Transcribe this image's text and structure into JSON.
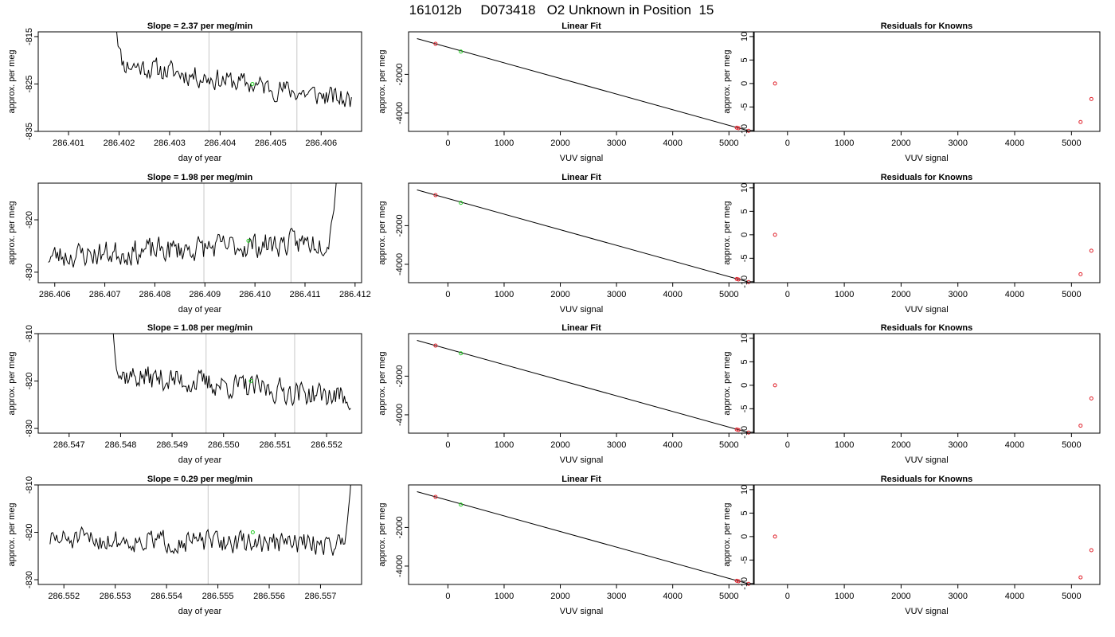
{
  "figure": {
    "title": "161012b     D073418   O2 Unknown in Position  15"
  },
  "colors": {
    "trace": "#000000",
    "vline": "#c8c8c8",
    "known_point": "#e0202a",
    "unknown_point": "#22cc22",
    "axis": "#000000"
  },
  "chart_data": [
    {
      "row": 1,
      "panels": [
        {
          "type": "line",
          "title": "Slope =  2.37  per meg/min",
          "xlabel": "day of year",
          "ylabel": "approx. per meg",
          "xlim": [
            286.4004,
            286.4068
          ],
          "ylim": [
            -835,
            -814
          ],
          "xticks": [
            286.401,
            286.402,
            286.403,
            286.404,
            286.405,
            286.406
          ],
          "xtick_labels": [
            "286.401",
            "286.402",
            "286.403",
            "286.404",
            "286.405",
            "286.406"
          ],
          "yticks": [
            -815,
            -825,
            -835
          ],
          "ytick_labels": [
            "-815",
            "-825",
            "-835"
          ],
          "vlines": [
            286.40378,
            286.40552
          ],
          "trace": {
            "x_start": 286.4019,
            "x_end": 286.4066,
            "baseline_start": -820.5,
            "baseline_end": -828.5,
            "amplitude": 2.3,
            "spike_start": -808,
            "seed": 11,
            "n": 180
          },
          "unknown_point": {
            "x": 286.40464,
            "y": -825
          }
        },
        {
          "type": "scatter",
          "title": "Linear Fit",
          "xlabel": "VUV signal",
          "ylabel": "approx. per meg",
          "xlim": [
            -700,
            5450
          ],
          "ylim": [
            -4950,
            200
          ],
          "xticks": [
            0,
            1000,
            2000,
            3000,
            4000,
            5000
          ],
          "xtick_labels": [
            "0",
            "1000",
            "2000",
            "3000",
            "4000",
            "5000"
          ],
          "yticks": [
            -2000,
            -4000
          ],
          "ytick_labels": [
            "-2000",
            "-4000"
          ],
          "fit_line": {
            "x": [
              -550,
              5350
            ],
            "y": [
              -150,
              -4920
            ]
          },
          "known_points": [
            {
              "x": -220,
              "y": -420
            },
            {
              "x": 5140,
              "y": -4760
            },
            {
              "x": 5170,
              "y": -4785
            },
            {
              "x": 5350,
              "y": -4920
            }
          ],
          "unknown_point": {
            "x": 230,
            "y": -820
          }
        },
        {
          "type": "scatter",
          "title": "Residuals for Knowns",
          "xlabel": "VUV signal",
          "ylabel": "approx. per meg",
          "xlim": [
            -600,
            5500
          ],
          "ylim": [
            -10.2,
            11
          ],
          "xticks": [
            0,
            1000,
            2000,
            3000,
            4000,
            5000
          ],
          "xtick_labels": [
            "0",
            "1000",
            "2000",
            "3000",
            "4000",
            "5000"
          ],
          "yticks": [
            10,
            5,
            0,
            -5,
            -10
          ],
          "ytick_labels": [
            "10",
            "5",
            "0",
            "-5",
            "-10"
          ],
          "known_points": [
            {
              "x": -220,
              "y": 0
            },
            {
              "x": 5160,
              "y": -8.2
            },
            {
              "x": 5350,
              "y": -3.3
            }
          ]
        }
      ]
    },
    {
      "row": 2,
      "panels": [
        {
          "type": "line",
          "title": "Slope =  1.98  per meg/min",
          "xlabel": "day of year",
          "ylabel": "approx. per meg",
          "xlim": [
            286.40567,
            286.41213
          ],
          "ylim": [
            -832,
            -813
          ],
          "xticks": [
            286.406,
            286.407,
            286.408,
            286.409,
            286.41,
            286.411,
            286.412
          ],
          "xtick_labels": [
            "286.406",
            "286.407",
            "286.408",
            "286.409",
            "286.410",
            "286.411",
            "286.412"
          ],
          "yticks": [
            -820,
            -830
          ],
          "ytick_labels": [
            "-820",
            "-830"
          ],
          "vlines": [
            286.40898,
            286.41072
          ],
          "trace": {
            "x_start": 286.40587,
            "x_end": 286.41163,
            "baseline_start": -827,
            "baseline_end": -824,
            "amplitude": 2.4,
            "spike_end": -812,
            "seed": 23,
            "n": 220
          },
          "unknown_point": {
            "x": 286.40987,
            "y": -824
          }
        },
        {
          "type": "scatter",
          "title": "Linear Fit",
          "xlabel": "VUV signal",
          "ylabel": "approx. per meg",
          "xlim": [
            -700,
            5450
          ],
          "ylim": [
            -4950,
            200
          ],
          "xticks": [
            0,
            1000,
            2000,
            3000,
            4000,
            5000
          ],
          "xtick_labels": [
            "0",
            "1000",
            "2000",
            "3000",
            "4000",
            "5000"
          ],
          "yticks": [
            -2000,
            -4000
          ],
          "ytick_labels": [
            "-2000",
            "-4000"
          ],
          "fit_line": {
            "x": [
              -550,
              5350
            ],
            "y": [
              -150,
              -4920
            ]
          },
          "known_points": [
            {
              "x": -220,
              "y": -420
            },
            {
              "x": 5140,
              "y": -4760
            },
            {
              "x": 5170,
              "y": -4785
            },
            {
              "x": 5350,
              "y": -4920
            }
          ],
          "unknown_point": {
            "x": 230,
            "y": -820
          }
        },
        {
          "type": "scatter",
          "title": "Residuals for Knowns",
          "xlabel": "VUV signal",
          "ylabel": "approx. per meg",
          "xlim": [
            -600,
            5500
          ],
          "ylim": [
            -10.2,
            11
          ],
          "xticks": [
            0,
            1000,
            2000,
            3000,
            4000,
            5000
          ],
          "xtick_labels": [
            "0",
            "1000",
            "2000",
            "3000",
            "4000",
            "5000"
          ],
          "yticks": [
            10,
            5,
            0,
            -5,
            -10
          ],
          "ytick_labels": [
            "10",
            "5",
            "0",
            "-5",
            "-10"
          ],
          "known_points": [
            {
              "x": -220,
              "y": 0
            },
            {
              "x": 5160,
              "y": -8.4
            },
            {
              "x": 5350,
              "y": -3.4
            }
          ]
        }
      ]
    },
    {
      "row": 3,
      "panels": [
        {
          "type": "line",
          "title": "Slope =  1.08  per meg/min",
          "xlabel": "day of year",
          "ylabel": "approx. per meg",
          "xlim": [
            286.5464,
            286.55268
          ],
          "ylim": [
            -831,
            -810
          ],
          "xticks": [
            286.547,
            286.548,
            286.549,
            286.55,
            286.551,
            286.552
          ],
          "xtick_labels": [
            "286.547",
            "286.548",
            "286.549",
            "286.550",
            "286.551",
            "286.552"
          ],
          "yticks": [
            -810,
            -820,
            -830
          ],
          "ytick_labels": [
            "-810",
            "-820",
            "-830"
          ],
          "vlines": [
            286.54966,
            286.55138
          ],
          "trace": {
            "x_start": 286.54782,
            "x_end": 286.55247,
            "baseline_start": -818.5,
            "baseline_end": -823.5,
            "amplitude": 2.6,
            "spike_start": -805,
            "seed": 37,
            "n": 190
          },
          "unknown_point": {
            "x": 286.55053,
            "y": -820
          }
        },
        {
          "type": "scatter",
          "title": "Linear Fit",
          "xlabel": "VUV signal",
          "ylabel": "approx. per meg",
          "xlim": [
            -700,
            5450
          ],
          "ylim": [
            -4950,
            200
          ],
          "xticks": [
            0,
            1000,
            2000,
            3000,
            4000,
            5000
          ],
          "xtick_labels": [
            "0",
            "1000",
            "2000",
            "3000",
            "4000",
            "5000"
          ],
          "yticks": [
            -2000,
            -4000
          ],
          "ytick_labels": [
            "-2000",
            "-4000"
          ],
          "fit_line": {
            "x": [
              -550,
              5350
            ],
            "y": [
              -150,
              -4920
            ]
          },
          "known_points": [
            {
              "x": -220,
              "y": -420
            },
            {
              "x": 5140,
              "y": -4760
            },
            {
              "x": 5170,
              "y": -4785
            },
            {
              "x": 5350,
              "y": -4920
            }
          ],
          "unknown_point": {
            "x": 230,
            "y": -820
          }
        },
        {
          "type": "scatter",
          "title": "Residuals for Knowns",
          "xlabel": "VUV signal",
          "ylabel": "approx. per meg",
          "xlim": [
            -600,
            5500
          ],
          "ylim": [
            -10.2,
            11
          ],
          "xticks": [
            0,
            1000,
            2000,
            3000,
            4000,
            5000
          ],
          "xtick_labels": [
            "0",
            "1000",
            "2000",
            "3000",
            "4000",
            "5000"
          ],
          "yticks": [
            10,
            5,
            0,
            -5,
            -10
          ],
          "ytick_labels": [
            "10",
            "5",
            "0",
            "-5",
            "-10"
          ],
          "known_points": [
            {
              "x": -220,
              "y": 0
            },
            {
              "x": 5160,
              "y": -8.6
            },
            {
              "x": 5350,
              "y": -2.8
            }
          ]
        }
      ]
    },
    {
      "row": 4,
      "panels": [
        {
          "type": "line",
          "title": "Slope =  0.29  per meg/min",
          "xlabel": "day of year",
          "ylabel": "approx. per meg",
          "xlim": [
            286.5515,
            286.5578
          ],
          "ylim": [
            -831,
            -810
          ],
          "xticks": [
            286.552,
            286.553,
            286.554,
            286.555,
            286.556,
            286.557
          ],
          "xtick_labels": [
            "286.552",
            "286.553",
            "286.554",
            "286.555",
            "286.556",
            "286.557"
          ],
          "yticks": [
            -810,
            -820,
            -830
          ],
          "ytick_labels": [
            "-810",
            "-820",
            "-830"
          ],
          "vlines": [
            286.55481,
            286.55658
          ],
          "trace": {
            "x_start": 286.55173,
            "x_end": 286.5576,
            "baseline_start": -821.5,
            "baseline_end": -822.5,
            "amplitude": 2.3,
            "spike_end": -808,
            "seed": 51,
            "n": 230
          },
          "unknown_point": {
            "x": 286.55568,
            "y": -820
          }
        },
        {
          "type": "scatter",
          "title": "Linear Fit",
          "xlabel": "VUV signal",
          "ylabel": "approx. per meg",
          "xlim": [
            -700,
            5450
          ],
          "ylim": [
            -4950,
            200
          ],
          "xticks": [
            0,
            1000,
            2000,
            3000,
            4000,
            5000
          ],
          "xtick_labels": [
            "0",
            "1000",
            "2000",
            "3000",
            "4000",
            "5000"
          ],
          "yticks": [
            -2000,
            -4000
          ],
          "ytick_labels": [
            "-2000",
            "-4000"
          ],
          "fit_line": {
            "x": [
              -550,
              5350
            ],
            "y": [
              -150,
              -4920
            ]
          },
          "known_points": [
            {
              "x": -220,
              "y": -420
            },
            {
              "x": 5140,
              "y": -4760
            },
            {
              "x": 5170,
              "y": -4785
            },
            {
              "x": 5350,
              "y": -4920
            }
          ],
          "unknown_point": {
            "x": 230,
            "y": -820
          }
        },
        {
          "type": "scatter",
          "title": "Residuals for Knowns",
          "xlabel": "VUV signal",
          "ylabel": "approx. per meg",
          "xlim": [
            -600,
            5500
          ],
          "ylim": [
            -10.2,
            11
          ],
          "xticks": [
            0,
            1000,
            2000,
            3000,
            4000,
            5000
          ],
          "xtick_labels": [
            "0",
            "1000",
            "2000",
            "3000",
            "4000",
            "5000"
          ],
          "yticks": [
            10,
            5,
            0,
            -5,
            -10
          ],
          "ytick_labels": [
            "10",
            "5",
            "0",
            "-5",
            "-10"
          ],
          "known_points": [
            {
              "x": -220,
              "y": 0
            },
            {
              "x": 5160,
              "y": -8.7
            },
            {
              "x": 5350,
              "y": -2.9
            }
          ]
        }
      ]
    }
  ]
}
